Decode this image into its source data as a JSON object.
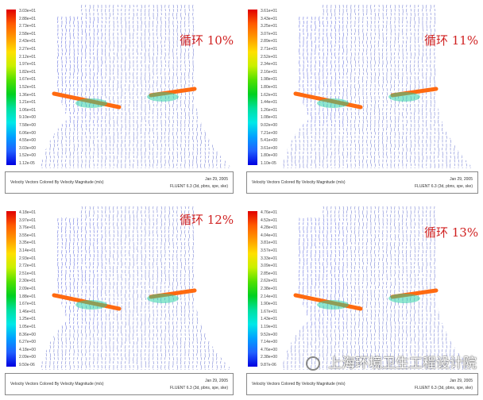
{
  "caption": "Velocity Vectors Colored By Velocity Magnitude (m/s)",
  "date": "Jan 29, 2005",
  "solver": "FLUENT 6.3 (3d, pbns, spe, ske)",
  "watermark": "上海环境卫生工程设计院",
  "colors": {
    "annotation": "#d02020",
    "vectors": "#2838c8",
    "jet": "#ff6a10"
  },
  "panels": [
    {
      "label": "循环 10%",
      "scale": [
        "3.03e+01",
        "2.88e+01",
        "2.73e+01",
        "2.58e+01",
        "2.43e+01",
        "2.27e+01",
        "2.12e+01",
        "1.97e+01",
        "1.82e+01",
        "1.67e+01",
        "1.52e+01",
        "1.36e+01",
        "1.21e+01",
        "1.06e+01",
        "9.10e+00",
        "7.58e+00",
        "6.06e+00",
        "4.55e+00",
        "3.03e+00",
        "1.52e+00",
        "1.12e-05"
      ]
    },
    {
      "label": "循环 11%",
      "scale": [
        "3.61e+01",
        "3.43e+01",
        "3.25e+01",
        "3.07e+01",
        "2.89e+01",
        "2.71e+01",
        "2.52e+01",
        "2.34e+01",
        "2.16e+01",
        "1.98e+01",
        "1.80e+01",
        "1.62e+01",
        "1.44e+01",
        "1.26e+01",
        "1.08e+01",
        "9.02e+00",
        "7.21e+00",
        "5.41e+00",
        "3.61e+00",
        "1.80e+00",
        "1.10e-05"
      ]
    },
    {
      "label": "循环 12%",
      "scale": [
        "4.18e+01",
        "3.97e+01",
        "3.76e+01",
        "3.55e+01",
        "3.35e+01",
        "3.14e+01",
        "2.93e+01",
        "2.72e+01",
        "2.51e+01",
        "2.30e+01",
        "2.09e+01",
        "1.88e+01",
        "1.67e+01",
        "1.46e+01",
        "1.25e+01",
        "1.05e+01",
        "8.36e+00",
        "6.27e+00",
        "4.18e+00",
        "2.09e+00",
        "9.50e-06"
      ]
    },
    {
      "label": "循环 13%",
      "scale": [
        "4.76e+01",
        "4.52e+01",
        "4.28e+01",
        "4.04e+01",
        "3.81e+01",
        "3.57e+01",
        "3.33e+01",
        "3.09e+01",
        "2.85e+01",
        "2.62e+01",
        "2.38e+01",
        "2.14e+01",
        "1.90e+01",
        "1.67e+01",
        "1.43e+01",
        "1.19e+01",
        "9.52e+00",
        "7.14e+00",
        "4.76e+00",
        "2.38e+00",
        "9.87e-06"
      ]
    }
  ]
}
